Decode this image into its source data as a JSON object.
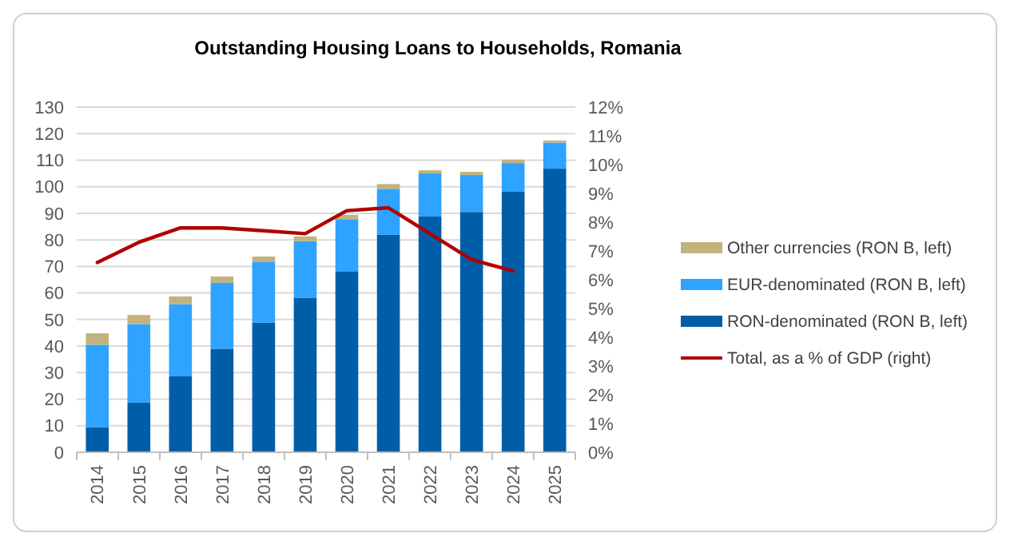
{
  "chart_data": {
    "type": "bar",
    "title": "Outstanding Housing Loans to Households, Romania",
    "stacked": true,
    "grid": "y",
    "legend": "right",
    "categories": [
      "2014",
      "2015",
      "2016",
      "2017",
      "2018",
      "2019",
      "2020",
      "2021",
      "2022",
      "2023",
      "2024",
      "2025"
    ],
    "series": [
      {
        "name": "RON-denominated (RON B, left)",
        "color": "#005ea8",
        "values": [
          9.5,
          18.7,
          28.6,
          39,
          48.8,
          58.1,
          68,
          81.9,
          88.8,
          90.5,
          98.1,
          106.8
        ]
      },
      {
        "name": "EUR-denominated (RON B, left)",
        "color": "#2ea3ff",
        "values": [
          31,
          29.6,
          27.2,
          24.9,
          22.8,
          21.4,
          19.8,
          17.3,
          16.2,
          13.9,
          10.8,
          9.8
        ]
      },
      {
        "name": "Other currencies (RON B, left)",
        "color": "#c1b27e",
        "values": [
          4.3,
          3.4,
          2.9,
          2.3,
          2.1,
          1.8,
          1.6,
          1.8,
          1.2,
          1.2,
          1.3,
          0.8
        ]
      },
      {
        "name": "Total, as a % of GDP (right)",
        "type": "line",
        "axis": "y2",
        "color": "#b00000",
        "values": [
          6.6,
          7.3,
          7.8,
          7.8,
          7.7,
          7.6,
          8.4,
          8.5,
          7.6,
          6.7,
          6.3,
          null
        ]
      }
    ],
    "ylim": [
      0,
      130
    ],
    "yticks": [
      0,
      10,
      20,
      30,
      40,
      50,
      60,
      70,
      80,
      90,
      100,
      110,
      120,
      130
    ],
    "y2lim": [
      0,
      12
    ],
    "y2ticks": [
      {
        "value": 0,
        "label": "0%"
      },
      {
        "value": 1,
        "label": "1%"
      },
      {
        "value": 2,
        "label": "2%"
      },
      {
        "value": 3,
        "label": "3%"
      },
      {
        "value": 4,
        "label": "4%"
      },
      {
        "value": 5,
        "label": "5%"
      },
      {
        "value": 6,
        "label": "6%"
      },
      {
        "value": 7,
        "label": "7%"
      },
      {
        "value": 8,
        "label": "8%"
      },
      {
        "value": 9,
        "label": "9%"
      },
      {
        "value": 10,
        "label": "10%"
      },
      {
        "value": 11,
        "label": "11%"
      },
      {
        "value": 12,
        "label": "12%"
      }
    ]
  }
}
